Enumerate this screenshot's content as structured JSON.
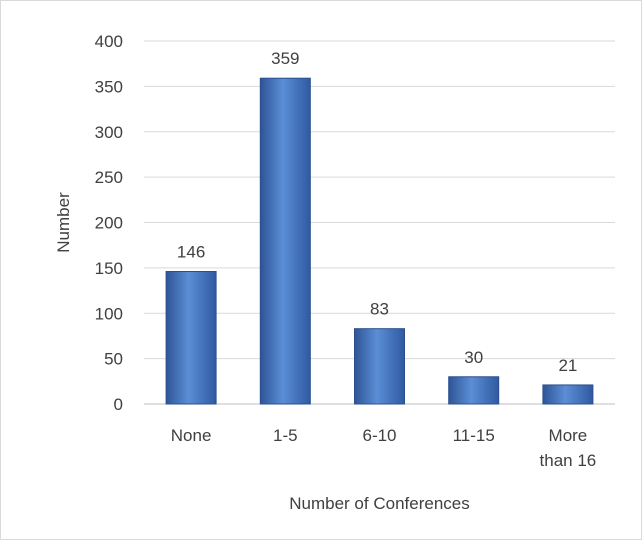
{
  "chart_data": {
    "type": "bar",
    "title": "",
    "xlabel": "Number of Conferences",
    "ylabel": "Number",
    "categories": [
      [
        "None"
      ],
      [
        "1-5"
      ],
      [
        "6-10"
      ],
      [
        "11-15"
      ],
      [
        "More",
        "than 16"
      ]
    ],
    "values": [
      146,
      359,
      83,
      30,
      21
    ],
    "ylim": [
      0,
      400
    ],
    "yticks": [
      0,
      50,
      100,
      150,
      200,
      250,
      300,
      350,
      400
    ],
    "grid": true,
    "legend": "none",
    "bar_color": "#4472c4"
  }
}
